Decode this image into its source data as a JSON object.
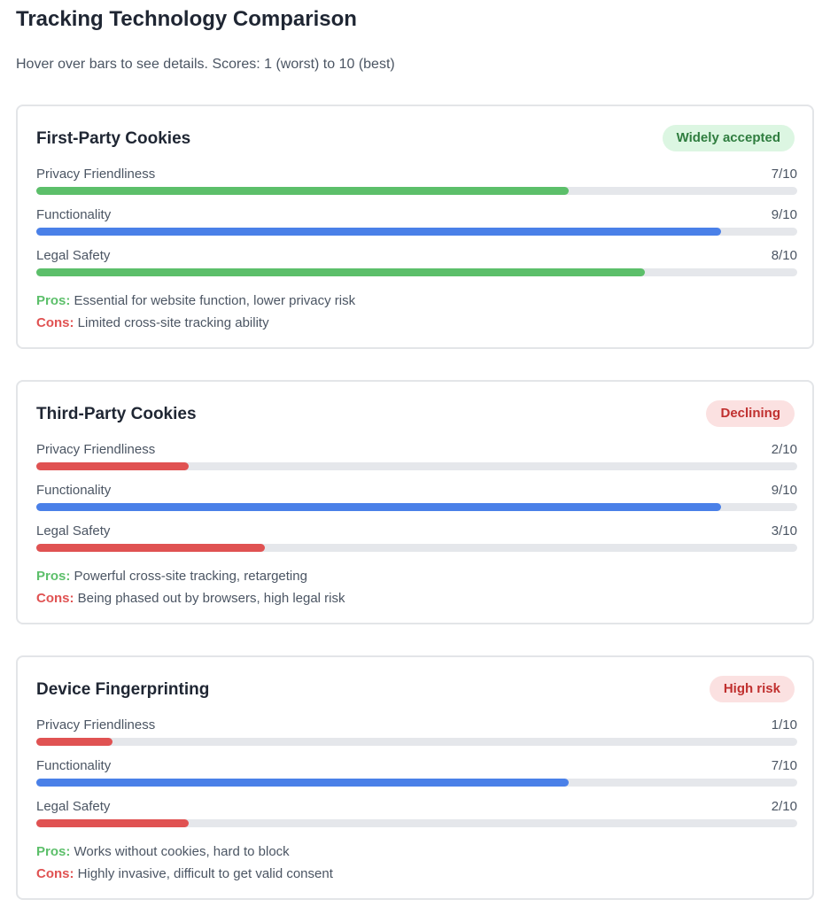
{
  "header": {
    "title": "Tracking Technology Comparison",
    "subtitle": "Hover over bars to see details. Scores: 1 (worst) to 10 (best)"
  },
  "colors": {
    "green": "#5cbf6a",
    "blue": "#4a80e8",
    "red": "#e05252",
    "track": "#e5e7eb"
  },
  "pros_label": "Pros:",
  "cons_label": "Cons:",
  "cards": [
    {
      "title": "First-Party Cookies",
      "badge": {
        "text": "Widely accepted",
        "bg": "#dcf6e2",
        "fg": "#2f7d3f"
      },
      "metrics": [
        {
          "label": "Privacy Friendliness",
          "score": 7,
          "score_text": "7/10",
          "color": "#5cbf6a"
        },
        {
          "label": "Functionality",
          "score": 9,
          "score_text": "9/10",
          "color": "#4a80e8"
        },
        {
          "label": "Legal Safety",
          "score": 8,
          "score_text": "8/10",
          "color": "#5cbf6a"
        }
      ],
      "pros": "Essential for website function, lower privacy risk",
      "cons": "Limited cross-site tracking ability"
    },
    {
      "title": "Third-Party Cookies",
      "badge": {
        "text": "Declining",
        "bg": "#fbe1e1",
        "fg": "#c0302f"
      },
      "metrics": [
        {
          "label": "Privacy Friendliness",
          "score": 2,
          "score_text": "2/10",
          "color": "#e05252"
        },
        {
          "label": "Functionality",
          "score": 9,
          "score_text": "9/10",
          "color": "#4a80e8"
        },
        {
          "label": "Legal Safety",
          "score": 3,
          "score_text": "3/10",
          "color": "#e05252"
        }
      ],
      "pros": "Powerful cross-site tracking, retargeting",
      "cons": "Being phased out by browsers, high legal risk"
    },
    {
      "title": "Device Fingerprinting",
      "badge": {
        "text": "High risk",
        "bg": "#fbe1e1",
        "fg": "#c0302f"
      },
      "metrics": [
        {
          "label": "Privacy Friendliness",
          "score": 1,
          "score_text": "1/10",
          "color": "#e05252"
        },
        {
          "label": "Functionality",
          "score": 7,
          "score_text": "7/10",
          "color": "#4a80e8"
        },
        {
          "label": "Legal Safety",
          "score": 2,
          "score_text": "2/10",
          "color": "#e05252"
        }
      ],
      "pros": "Works without cookies, hard to block",
      "cons": "Highly invasive, difficult to get valid consent"
    }
  ]
}
